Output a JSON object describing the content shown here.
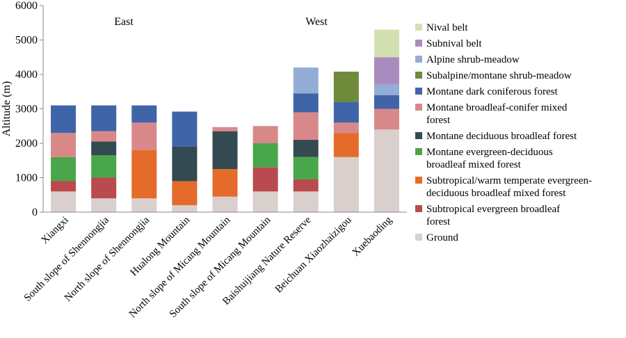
{
  "chart_data": {
    "type": "bar",
    "stacked": true,
    "ylabel": "Altitude (m)",
    "ylim": [
      0,
      6000
    ],
    "yticks": [
      0,
      1000,
      2000,
      3000,
      4000,
      5000,
      6000
    ],
    "grid": false,
    "legend_position": "right",
    "annotations": [
      {
        "text": "East",
        "near_category": "South slope of Shennongjia"
      },
      {
        "text": "West",
        "near_category": "Baishuijiang Nature Reserve"
      }
    ],
    "categories": [
      "Xiangxi",
      "South slope of Shennongjia",
      "North slope of Shennongjia",
      "Hualong Mountain",
      "North slope of Micang Mountain",
      "South slope of Micang Mountain",
      "Baishuijiang Nature Reserve",
      "Beichuan Xiaozhaizigou",
      "Xuebaoding"
    ],
    "series": [
      {
        "name": "Ground",
        "color": "#d9cfcc",
        "values": [
          600,
          400,
          400,
          200,
          450,
          600,
          600,
          1600,
          2400
        ]
      },
      {
        "name": "Subtropical evergreen broadleaf forest",
        "color": "#b94a4d",
        "values": [
          300,
          600,
          0,
          0,
          0,
          700,
          350,
          0,
          0
        ]
      },
      {
        "name": "Subtropical/warm temperate evergreen-deciduous broadleaf mixed forest",
        "color": "#e56b2b",
        "values": [
          0,
          0,
          1400,
          700,
          800,
          0,
          0,
          700,
          0
        ]
      },
      {
        "name": "Montane evergreen-deciduous broadleaf mixed forest",
        "color": "#4aa64a",
        "values": [
          700,
          650,
          0,
          0,
          0,
          700,
          650,
          0,
          0
        ]
      },
      {
        "name": "Montane deciduous broadleaf forest",
        "color": "#344a52",
        "values": [
          0,
          400,
          0,
          1000,
          1100,
          0,
          500,
          0,
          0
        ]
      },
      {
        "name": "Montane broadleaf-conifer mixed forest",
        "color": "#d9888a",
        "values": [
          700,
          300,
          800,
          0,
          120,
          500,
          800,
          300,
          600
        ]
      },
      {
        "name": "Montane dark coniferous forest",
        "color": "#3f64a8",
        "values": [
          800,
          750,
          500,
          1020,
          0,
          0,
          550,
          600,
          400
        ]
      },
      {
        "name": "Subalpine/montane shrub-meadow",
        "color": "#6f8a3a",
        "values": [
          0,
          0,
          0,
          0,
          0,
          0,
          0,
          880,
          0
        ]
      },
      {
        "name": "Alpine shrub-meadow",
        "color": "#94add6",
        "values": [
          0,
          0,
          0,
          0,
          0,
          0,
          750,
          0,
          300
        ]
      },
      {
        "name": "Subnival belt",
        "color": "#a98cbf",
        "values": [
          0,
          0,
          0,
          0,
          0,
          0,
          0,
          0,
          800
        ]
      },
      {
        "name": "Nival belt",
        "color": "#d3e1b0",
        "values": [
          0,
          0,
          0,
          0,
          0,
          0,
          0,
          0,
          800
        ]
      }
    ],
    "legend_entries": [
      {
        "series": "Nival belt",
        "lines": [
          "Nival belt"
        ]
      },
      {
        "series": "Subnival belt",
        "lines": [
          "Subnival belt"
        ]
      },
      {
        "series": "Alpine shrub-meadow",
        "lines": [
          "Alpine shrub-meadow"
        ]
      },
      {
        "series": "Subalpine/montane shrub-meadow",
        "lines": [
          "Subalpine/montane shrub-meadow"
        ]
      },
      {
        "series": "Montane dark coniferous forest",
        "lines": [
          "Montane dark coniferous forest"
        ]
      },
      {
        "series": "Montane broadleaf-conifer mixed forest",
        "lines": [
          "Montane broadleaf-conifer mixed",
          "forest"
        ]
      },
      {
        "series": "Montane deciduous broadleaf forest",
        "lines": [
          "Montane deciduous broadleaf forest"
        ]
      },
      {
        "series": "Montane evergreen-deciduous broadleaf mixed forest",
        "lines": [
          "Montane evergreen-deciduous",
          "broadleaf mixed forest"
        ]
      },
      {
        "series": "Subtropical/warm temperate evergreen-deciduous broadleaf mixed forest",
        "lines": [
          "Subtropical/warm temperate evergreen-",
          "deciduous broadleaf mixed forest"
        ]
      },
      {
        "series": "Subtropical evergreen broadleaf forest",
        "lines": [
          "Subtropical evergreen broadleaf",
          "forest"
        ]
      },
      {
        "series": "Ground",
        "lines": [
          "Ground"
        ]
      }
    ]
  }
}
